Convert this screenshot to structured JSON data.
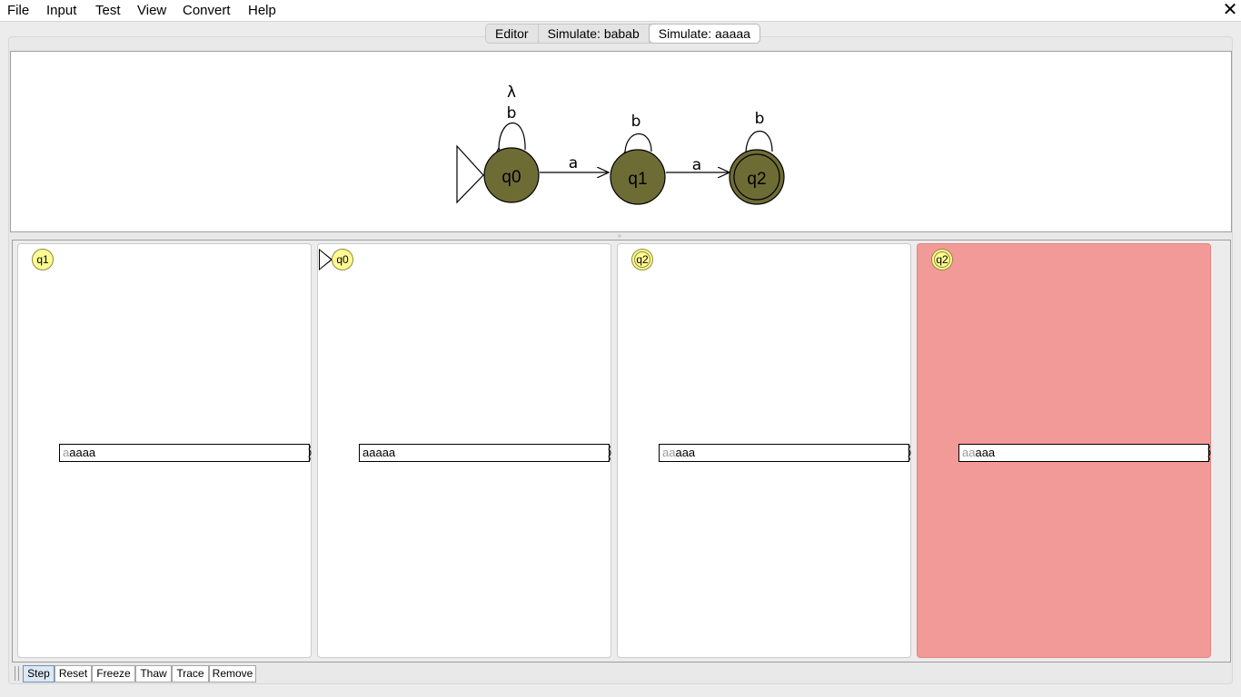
{
  "menubar": {
    "items": [
      "File",
      "Input",
      "Test",
      "View",
      "Convert",
      "Help"
    ],
    "close_glyph": "✕"
  },
  "tabs": [
    {
      "label": "Editor",
      "active": false
    },
    {
      "label": "Simulate: babab",
      "active": false
    },
    {
      "label": "Simulate: aaaaa",
      "active": true
    }
  ],
  "automaton": {
    "states": [
      {
        "id": "q0",
        "initial": true,
        "final": false
      },
      {
        "id": "q1",
        "initial": false,
        "final": false
      },
      {
        "id": "q2",
        "initial": false,
        "final": true
      }
    ],
    "transitions": [
      {
        "from": "q0",
        "to": "q0",
        "labels": [
          "b",
          "λ"
        ]
      },
      {
        "from": "q0",
        "to": "q1",
        "labels": [
          "a"
        ]
      },
      {
        "from": "q1",
        "to": "q1",
        "labels": [
          "b"
        ]
      },
      {
        "from": "q1",
        "to": "q2",
        "labels": [
          "a"
        ]
      },
      {
        "from": "q2",
        "to": "q2",
        "labels": [
          "b"
        ]
      }
    ],
    "state_fill": "#6e6c35"
  },
  "configurations": [
    {
      "state": "q1",
      "initial": false,
      "final": false,
      "consumed": "a",
      "remaining": "aaaa",
      "status": "normal"
    },
    {
      "state": "q0",
      "initial": true,
      "final": false,
      "consumed": "",
      "remaining": "aaaaa",
      "status": "normal"
    },
    {
      "state": "q2",
      "initial": false,
      "final": true,
      "consumed": "aa",
      "remaining": "aaa",
      "status": "normal"
    },
    {
      "state": "q2",
      "initial": false,
      "final": true,
      "consumed": "aa",
      "remaining": "aaa",
      "status": "rejected"
    }
  ],
  "toolbar": {
    "buttons": [
      "Step",
      "Reset",
      "Freeze",
      "Thaw",
      "Trace",
      "Remove"
    ],
    "pressed": "Step"
  },
  "colors": {
    "badge_fill": "#fffb94",
    "rejected_fill": "#f29a98"
  }
}
